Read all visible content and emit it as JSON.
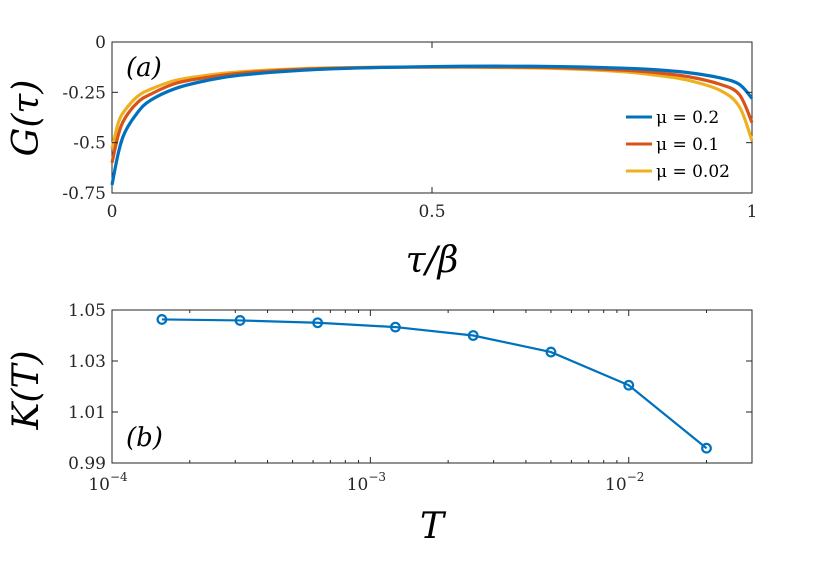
{
  "chart_data": [
    {
      "type": "line",
      "panel_label": "(a)",
      "xlabel": "τ/β",
      "ylabel": "G(τ)",
      "xlim": [
        0,
        1
      ],
      "ylim": [
        -0.75,
        0
      ],
      "xticks": [
        0,
        0.5,
        1
      ],
      "xtick_labels": [
        "0",
        "0.5",
        "1"
      ],
      "yticks": [
        0,
        -0.25,
        -0.5,
        -0.75
      ],
      "ytick_labels": [
        "0",
        "-0.25",
        "-0.5",
        "-0.75"
      ],
      "legend_position": "right",
      "series": [
        {
          "name": "μ = 0.2",
          "color": "#0072BD",
          "x": [
            0,
            0.01,
            0.02,
            0.04,
            0.06,
            0.1,
            0.15,
            0.2,
            0.3,
            0.4,
            0.5,
            0.6,
            0.7,
            0.8,
            0.85,
            0.9,
            0.95,
            0.98,
            1.0
          ],
          "y": [
            -0.71,
            -0.55,
            -0.45,
            -0.35,
            -0.29,
            -0.23,
            -0.19,
            -0.165,
            -0.14,
            -0.128,
            -0.122,
            -0.12,
            -0.122,
            -0.13,
            -0.138,
            -0.152,
            -0.178,
            -0.21,
            -0.28
          ]
        },
        {
          "name": "μ = 0.1",
          "color": "#D95319",
          "x": [
            0,
            0.01,
            0.02,
            0.04,
            0.06,
            0.1,
            0.15,
            0.2,
            0.3,
            0.4,
            0.5,
            0.6,
            0.7,
            0.8,
            0.85,
            0.9,
            0.95,
            0.98,
            1.0
          ],
          "y": [
            -0.6,
            -0.46,
            -0.38,
            -0.3,
            -0.26,
            -0.205,
            -0.175,
            -0.155,
            -0.135,
            -0.127,
            -0.124,
            -0.124,
            -0.128,
            -0.14,
            -0.152,
            -0.172,
            -0.21,
            -0.26,
            -0.4
          ]
        },
        {
          "name": "μ = 0.02",
          "color": "#EDB120",
          "x": [
            0,
            0.01,
            0.02,
            0.04,
            0.06,
            0.1,
            0.15,
            0.2,
            0.3,
            0.4,
            0.5,
            0.6,
            0.7,
            0.8,
            0.85,
            0.9,
            0.95,
            0.98,
            1.0
          ],
          "y": [
            -0.53,
            -0.4,
            -0.34,
            -0.27,
            -0.235,
            -0.19,
            -0.165,
            -0.148,
            -0.132,
            -0.126,
            -0.125,
            -0.126,
            -0.132,
            -0.148,
            -0.165,
            -0.19,
            -0.24,
            -0.32,
            -0.49
          ]
        }
      ]
    },
    {
      "type": "line",
      "panel_label": "(b)",
      "xlabel": "T",
      "ylabel": "K(T)",
      "xscale": "log",
      "xlim": [
        0.0001,
        0.03
      ],
      "ylim": [
        0.99,
        1.05
      ],
      "xticks": [
        0.0001,
        0.001,
        0.01
      ],
      "xtick_labels": [
        {
          "base": "10",
          "exp": "−4"
        },
        {
          "base": "10",
          "exp": "−3"
        },
        {
          "base": "10",
          "exp": "−2"
        }
      ],
      "yticks": [
        1.05,
        1.03,
        1.01,
        0.99
      ],
      "ytick_labels": [
        "1.05",
        "1.03",
        "1.01",
        "0.99"
      ],
      "series": [
        {
          "color": "#0072BD",
          "marker": "circle",
          "x": [
            0.000156,
            0.000313,
            0.000625,
            0.00125,
            0.0025,
            0.005,
            0.01,
            0.02
          ],
          "y": [
            1.0463,
            1.0459,
            1.045,
            1.0433,
            1.04,
            1.0335,
            1.0205,
            0.9958
          ]
        }
      ]
    }
  ]
}
